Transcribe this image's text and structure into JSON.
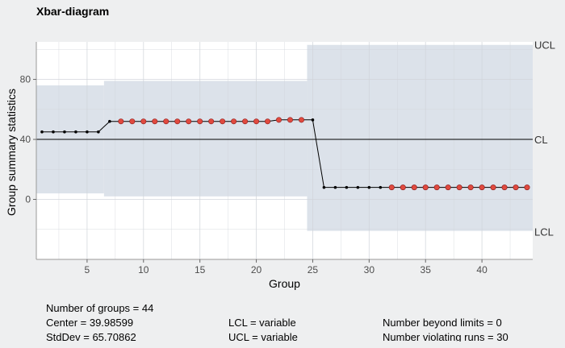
{
  "title": "Xbar-diagram",
  "chart_data": {
    "type": "line",
    "title": "Xbar-diagram",
    "xlabel": "Group",
    "ylabel": "Group summary statistics",
    "xlim": [
      0.5,
      44.5
    ],
    "ylim": [
      -40,
      105
    ],
    "xticks": [
      5,
      10,
      15,
      20,
      25,
      30,
      35,
      40
    ],
    "yticks": [
      0,
      40,
      80
    ],
    "grid": true,
    "center_line": {
      "label": "CL",
      "value": 39.98599
    },
    "limit_labels": {
      "upper": "UCL",
      "lower": "LCL"
    },
    "limit_bands": [
      {
        "from": 1,
        "to": 6,
        "ucl": 76,
        "lcl": 4
      },
      {
        "from": 7,
        "to": 24,
        "ucl": 79,
        "lcl": 2
      },
      {
        "from": 25,
        "to": 44,
        "ucl": 103,
        "lcl": -21
      }
    ],
    "series": [
      {
        "x": [
          1,
          2,
          3,
          4,
          5,
          6,
          7,
          8,
          9,
          10,
          11,
          12,
          13,
          14,
          15,
          16,
          17,
          18,
          19,
          20,
          21,
          22,
          23,
          24,
          25,
          26,
          27,
          28,
          29,
          30,
          31,
          32,
          33,
          34,
          35,
          36,
          37,
          38,
          39,
          40,
          41,
          42,
          43,
          44
        ],
        "values": [
          45,
          45,
          45,
          45,
          45,
          45,
          52,
          52,
          52,
          52,
          52,
          52,
          52,
          52,
          52,
          52,
          52,
          52,
          52,
          52,
          52,
          53,
          53,
          53,
          53,
          8,
          8,
          8,
          8,
          8,
          8,
          8,
          8,
          8,
          8,
          8,
          8,
          8,
          8,
          8,
          8,
          8,
          8,
          8
        ]
      }
    ],
    "violating_points": [
      8,
      9,
      10,
      11,
      12,
      13,
      14,
      15,
      16,
      17,
      18,
      19,
      20,
      21,
      22,
      23,
      24,
      32,
      33,
      34,
      35,
      36,
      37,
      38,
      39,
      40,
      41,
      42,
      43,
      44
    ],
    "colors": {
      "band": "#dce2ea",
      "line": "#000000",
      "point": "#000000",
      "violating_point": "#e04a3f",
      "violating_outline": "#8b1a1a",
      "grid": "#d0d4da",
      "plot_background": "#ffffff"
    }
  },
  "summary": {
    "rows": [
      [
        "Number of groups = 44",
        "",
        ""
      ],
      [
        "Center = 39.98599",
        "LCL = variable",
        "Number beyond limits = 0"
      ],
      [
        "StdDev = 65.70862",
        "UCL = variable",
        "Number violating runs = 30"
      ]
    ]
  }
}
